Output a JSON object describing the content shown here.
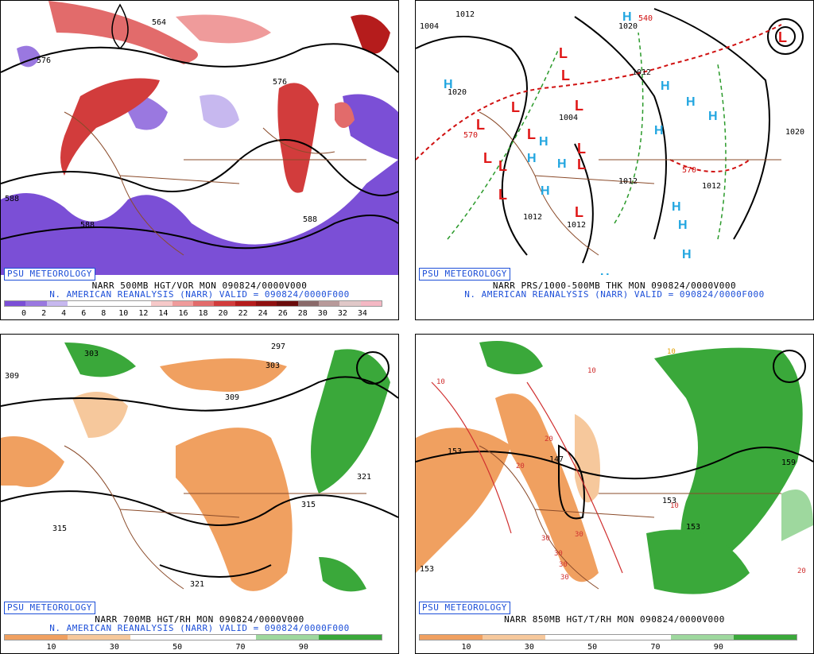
{
  "panels": {
    "p1": {
      "badge": "PSU METEOROLOGY",
      "line1": "NARR 500MB HGT/VOR MON 090824/0000V000",
      "line2": "N. AMERICAN REANALYSIS (NARR) VALID = 090824/0000F000",
      "contour_labels": [
        "576",
        "564",
        "576",
        "588",
        "588",
        "588"
      ],
      "colorbar": {
        "colors": [
          "#7b4fd6",
          "#9a78e0",
          "#c7b8ef",
          "#ffffff",
          "#ffffff",
          "#ffffff",
          "#ffffff",
          "#f6c9c9",
          "#ef9b9b",
          "#e26b6b",
          "#d23c3c",
          "#b51c1c",
          "#8f1010",
          "#6a0c0c",
          "#8a6a6a",
          "#b89a9a",
          "#e0c8c8",
          "#f4b8c4"
        ],
        "ticks": [
          "0",
          "2",
          "4",
          "6",
          "8",
          "10",
          "12",
          "14",
          "16",
          "18",
          "20",
          "22",
          "24",
          "26",
          "28",
          "30",
          "32",
          "34"
        ]
      }
    },
    "p2": {
      "badge": "PSU METEOROLOGY",
      "line1": "NARR PRS/1000-500MB THK MON 090824/0000V000",
      "line2": "N. AMERICAN REANALYSIS (NARR) VALID = 090824/0000F000",
      "contour_labels": [
        "1004",
        "1012",
        "1020",
        "1020",
        "1012",
        "1004",
        "1012",
        "1012",
        "1012",
        "1012",
        "1020",
        "540",
        "570",
        "570"
      ],
      "highs": [
        "H",
        "H",
        "H",
        "H",
        "H",
        "H",
        "H",
        "H",
        "H",
        "H",
        "H",
        "H",
        "H",
        "H"
      ],
      "lows": [
        "L",
        "L",
        "L",
        "L",
        "L",
        "L",
        "L",
        "L",
        "L",
        "L",
        "L",
        "L",
        "L"
      ]
    },
    "p3": {
      "badge": "PSU METEOROLOGY",
      "line1": "NARR 700MB HGT/RH MON 090824/0000V000",
      "line2": "N. AMERICAN REANALYSIS (NARR) VALID = 090824/0000F000",
      "contour_labels": [
        "309",
        "303",
        "297",
        "303",
        "309",
        "315",
        "315",
        "321",
        "321"
      ],
      "colorbar": {
        "colors": [
          "#f0a060",
          "#f0a060",
          "#f6c89c",
          "#f6c89c",
          "#ffffff",
          "#ffffff",
          "#ffffff",
          "#ffffff",
          "#9ed89e",
          "#9ed89e",
          "#3aa83a",
          "#3aa83a"
        ],
        "ticks": [
          "10",
          "30",
          "50",
          "70",
          "90"
        ]
      }
    },
    "p4": {
      "badge": "PSU METEOROLOGY",
      "line1": "NARR 850MB HGT/T/RH MON 090824/0000V000",
      "line2": "",
      "contour_labels": [
        "153",
        "147",
        "153",
        "153",
        "159",
        "153"
      ],
      "temp_labels": [
        "10",
        "10",
        "20",
        "20",
        "30",
        "30",
        "30",
        "30",
        "30",
        "10",
        "20",
        "10"
      ],
      "colorbar": {
        "colors": [
          "#f0a060",
          "#f0a060",
          "#f6c89c",
          "#f6c89c",
          "#ffffff",
          "#ffffff",
          "#ffffff",
          "#ffffff",
          "#9ed89e",
          "#9ed89e",
          "#3aa83a",
          "#3aa83a"
        ],
        "ticks": [
          "10",
          "30",
          "50",
          "70",
          "90"
        ]
      }
    }
  }
}
